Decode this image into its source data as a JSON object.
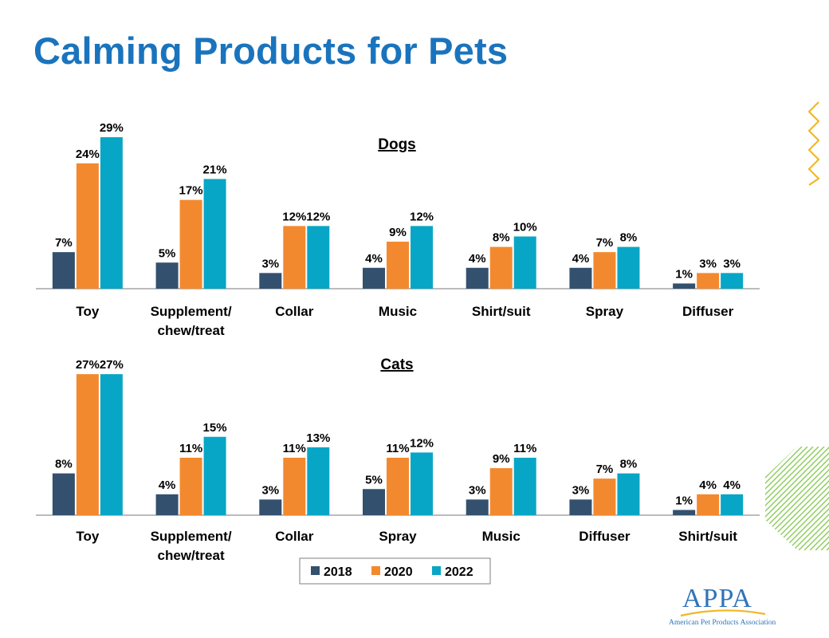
{
  "title": "Calming Products for Pets",
  "logo": {
    "name": "APPA",
    "subtitle": "American Pet Products Association"
  },
  "colors": {
    "title": "#1a74bd",
    "s2018": "#34506f",
    "s2020": "#f3892e",
    "s2022": "#08a6c6",
    "axis": "#a6a6a6",
    "zigzag": "#f2b727",
    "stripes": "#8ccc5a"
  },
  "chart_data": [
    {
      "type": "bar",
      "title": "Dogs",
      "categories": [
        "Toy",
        "Supplement/\nchew/treat",
        "Collar",
        "Music",
        "Shirt/suit",
        "Spray",
        "Diffuser"
      ],
      "series": [
        {
          "name": "2018",
          "values": [
            7,
            5,
            3,
            4,
            4,
            4,
            1
          ],
          "labels": [
            "7%",
            "5%",
            "3%",
            "4%",
            "4%",
            "4%",
            "1%"
          ]
        },
        {
          "name": "2020",
          "values": [
            24,
            17,
            12,
            9,
            8,
            7,
            3
          ],
          "labels": [
            "24%",
            "17%",
            "12%",
            "9%",
            "8%",
            "7%",
            "3%"
          ]
        },
        {
          "name": "2022",
          "values": [
            29,
            21,
            12,
            12,
            10,
            8,
            3
          ],
          "labels": [
            "29%",
            "21%",
            "12%",
            "12%",
            "10%",
            "8%",
            "3%"
          ]
        }
      ],
      "ylim": [
        0,
        30
      ]
    },
    {
      "type": "bar",
      "title": "Cats",
      "categories": [
        "Toy",
        "Supplement/\nchew/treat",
        "Collar",
        "Spray",
        "Music",
        "Diffuser",
        "Shirt/suit"
      ],
      "series": [
        {
          "name": "2018",
          "values": [
            8,
            4,
            3,
            5,
            3,
            3,
            1
          ],
          "labels": [
            "8%",
            "4%",
            "3%",
            "5%",
            "3%",
            "3%",
            "1%"
          ]
        },
        {
          "name": "2020",
          "values": [
            27,
            11,
            11,
            11,
            9,
            7,
            4
          ],
          "labels": [
            "27%",
            "11%",
            "11%",
            "11%",
            "9%",
            "7%",
            "4%"
          ]
        },
        {
          "name": "2022",
          "values": [
            27,
            15,
            13,
            12,
            11,
            8,
            4
          ],
          "labels": [
            "27%",
            "15%",
            "13%",
            "12%",
            "11%",
            "8%",
            "4%"
          ]
        }
      ],
      "ylim": [
        0,
        27
      ]
    }
  ],
  "legend": {
    "placement": "bottom-center",
    "items": [
      "2018",
      "2020",
      "2022"
    ]
  }
}
